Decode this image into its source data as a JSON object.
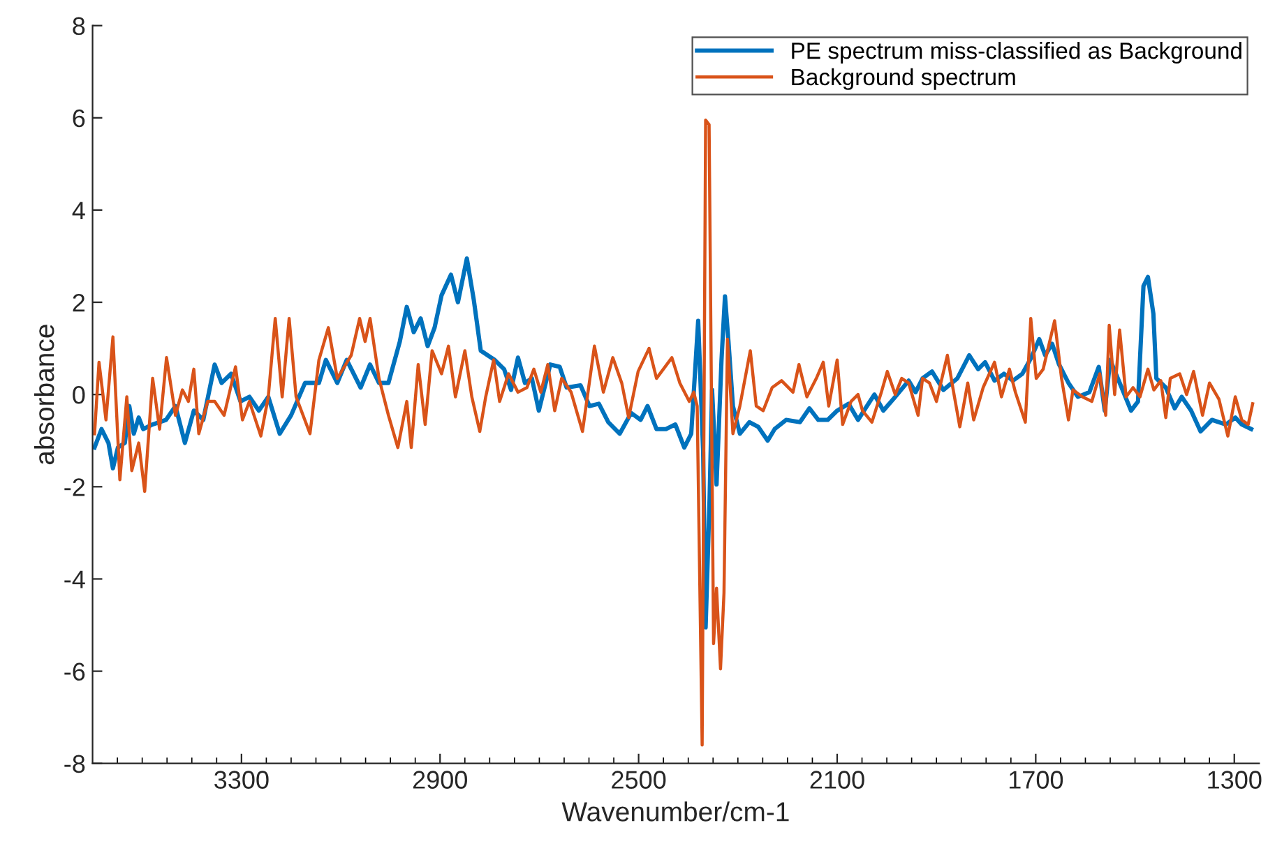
{
  "chart_data": {
    "type": "line",
    "xlabel": "Wavenumber/cm-1",
    "ylabel": "absorbance",
    "xlim": [
      3600,
      1250
    ],
    "ylim": [
      -8,
      8
    ],
    "xticks": [
      {
        "value": 3550,
        "label": null
      },
      {
        "value": 3500,
        "label": null
      },
      {
        "value": 3450,
        "label": null
      },
      {
        "value": 3400,
        "label": null
      },
      {
        "value": 3350,
        "label": null
      },
      3300,
      {
        "value": 3250,
        "label": null
      },
      {
        "value": 3200,
        "label": null
      },
      {
        "value": 3150,
        "label": null
      },
      {
        "value": 3100,
        "label": null
      },
      {
        "value": 3050,
        "label": null
      },
      {
        "value": 3000,
        "label": null
      },
      {
        "value": 2950,
        "label": null
      },
      2900,
      {
        "value": 2850,
        "label": null
      },
      {
        "value": 2800,
        "label": null
      },
      {
        "value": 2750,
        "label": null
      },
      {
        "value": 2700,
        "label": null
      },
      {
        "value": 2650,
        "label": null
      },
      {
        "value": 2600,
        "label": null
      },
      {
        "value": 2550,
        "label": null
      },
      2500,
      {
        "value": 2450,
        "label": null
      },
      {
        "value": 2400,
        "label": null
      },
      {
        "value": 2350,
        "label": null
      },
      {
        "value": 2300,
        "label": null
      },
      {
        "value": 2250,
        "label": null
      },
      {
        "value": 2200,
        "label": null
      },
      {
        "value": 2150,
        "label": null
      },
      2100,
      {
        "value": 2050,
        "label": null
      },
      {
        "value": 2000,
        "label": null
      },
      {
        "value": 1950,
        "label": null
      },
      {
        "value": 1900,
        "label": null
      },
      {
        "value": 1850,
        "label": null
      },
      {
        "value": 1800,
        "label": null
      },
      {
        "value": 1750,
        "label": null
      },
      1700,
      {
        "value": 1650,
        "label": null
      },
      {
        "value": 1600,
        "label": null
      },
      {
        "value": 1550,
        "label": null
      },
      {
        "value": 1500,
        "label": null
      },
      {
        "value": 1450,
        "label": null
      },
      {
        "value": 1400,
        "label": null
      },
      {
        "value": 1350,
        "label": null
      },
      1300
    ],
    "yticks": [
      -8,
      -6,
      -4,
      -2,
      0,
      2,
      4,
      6,
      8
    ],
    "grid": false,
    "legend": "top right",
    "marker": "none",
    "line_style": "solid",
    "series": [
      {
        "name": "PE spectrum miss-classified as Background",
        "color": "#0072bd",
        "x": [
          3596,
          3582,
          3568,
          3559,
          3549,
          3535,
          3526,
          3517,
          3507,
          3498,
          3479,
          3452,
          3433,
          3414,
          3396,
          3377,
          3354,
          3340,
          3321,
          3302,
          3284,
          3265,
          3246,
          3223,
          3200,
          3172,
          3144,
          3130,
          3107,
          3088,
          3060,
          3041,
          3023,
          3004,
          2981,
          2967,
          2953,
          2939,
          2925,
          2911,
          2897,
          2878,
          2864,
          2846,
          2832,
          2818,
          2790,
          2771,
          2757,
          2743,
          2729,
          2715,
          2701,
          2678,
          2659,
          2645,
          2617,
          2599,
          2580,
          2561,
          2538,
          2515,
          2496,
          2482,
          2464,
          2445,
          2426,
          2408,
          2394,
          2380,
          2370,
          2365,
          2357,
          2352,
          2343,
          2333,
          2326,
          2319,
          2310,
          2296,
          2277,
          2259,
          2240,
          2226,
          2203,
          2175,
          2156,
          2138,
          2119,
          2100,
          2077,
          2058,
          2025,
          2007,
          1983,
          1956,
          1942,
          1928,
          1909,
          1886,
          1858,
          1834,
          1816,
          1802,
          1783,
          1764,
          1746,
          1727,
          1709,
          1693,
          1681,
          1667,
          1653,
          1634,
          1615,
          1592,
          1573,
          1561,
          1550,
          1527,
          1508,
          1494,
          1483,
          1474,
          1463,
          1457,
          1438,
          1420,
          1406,
          1387,
          1368,
          1345,
          1317,
          1298,
          1285,
          1266
        ],
        "values": [
          -1.15,
          -0.75,
          -1.05,
          -1.6,
          -1.15,
          -1.05,
          -0.25,
          -0.85,
          -0.5,
          -0.75,
          -0.65,
          -0.55,
          -0.25,
          -1.05,
          -0.35,
          -0.55,
          0.65,
          0.25,
          0.45,
          -0.15,
          -0.05,
          -0.35,
          -0.05,
          -0.85,
          -0.45,
          0.25,
          0.25,
          0.75,
          0.25,
          0.75,
          0.15,
          0.65,
          0.25,
          0.25,
          1.15,
          1.9,
          1.35,
          1.65,
          1.05,
          1.45,
          2.15,
          2.6,
          2.0,
          2.95,
          2.05,
          0.95,
          0.75,
          0.55,
          0.1,
          0.8,
          0.25,
          0.35,
          -0.35,
          0.65,
          0.6,
          0.15,
          0.2,
          -0.25,
          -0.2,
          -0.6,
          -0.85,
          -0.4,
          -0.55,
          -0.25,
          -0.75,
          -0.75,
          -0.65,
          -1.15,
          -0.85,
          1.6,
          -1.25,
          -5.05,
          -2.25,
          0.1,
          -1.95,
          0.75,
          2.13,
          1.15,
          -0.25,
          -0.85,
          -0.6,
          -0.7,
          -1.0,
          -0.75,
          -0.55,
          -0.6,
          -0.3,
          -0.55,
          -0.55,
          -0.35,
          -0.2,
          -0.55,
          0,
          -0.35,
          -0.05,
          0.3,
          0.05,
          0.35,
          0.5,
          0.1,
          0.35,
          0.85,
          0.55,
          0.7,
          0.3,
          0.45,
          0.3,
          0.45,
          0.8,
          1.2,
          0.85,
          1.1,
          0.65,
          0.25,
          -0.05,
          0.05,
          0.6,
          -0.35,
          0.75,
          0.15,
          -0.35,
          -0.15,
          2.35,
          2.55,
          1.75,
          0.35,
          0.15,
          -0.3,
          -0.05,
          -0.35,
          -0.8,
          -0.55,
          -0.65,
          -0.5,
          -0.65,
          -0.75
        ]
      },
      {
        "name": "Background spectrum",
        "color": "#d95319",
        "x": [
          3596,
          3587,
          3573,
          3559,
          3545,
          3531,
          3521,
          3507,
          3495,
          3479,
          3465,
          3451,
          3433,
          3419,
          3407,
          3396,
          3386,
          3368,
          3354,
          3335,
          3312,
          3298,
          3284,
          3261,
          3246,
          3232,
          3218,
          3204,
          3190,
          3162,
          3144,
          3125,
          3107,
          3079,
          3062,
          3051,
          3041,
          3023,
          3004,
          2985,
          2967,
          2958,
          2944,
          2930,
          2916,
          2897,
          2883,
          2869,
          2850,
          2836,
          2820,
          2808,
          2792,
          2780,
          2762,
          2743,
          2725,
          2711,
          2697,
          2683,
          2669,
          2655,
          2636,
          2613,
          2589,
          2571,
          2552,
          2534,
          2520,
          2501,
          2479,
          2464,
          2433,
          2417,
          2398,
          2389,
          2382,
          2372,
          2365,
          2358,
          2349,
          2343,
          2335,
          2328,
          2321,
          2310,
          2296,
          2275,
          2263,
          2249,
          2231,
          2212,
          2189,
          2177,
          2161,
          2142,
          2128,
          2117,
          2100,
          2089,
          2072,
          2058,
          2049,
          2030,
          2011,
          1999,
          1983,
          1970,
          1956,
          1937,
          1928,
          1914,
          1900,
          1878,
          1867,
          1853,
          1837,
          1825,
          1806,
          1783,
          1769,
          1753,
          1741,
          1721,
          1710,
          1699,
          1685,
          1662,
          1648,
          1634,
          1625,
          1606,
          1587,
          1571,
          1559,
          1552,
          1541,
          1531,
          1518,
          1504,
          1490,
          1474,
          1462,
          1448,
          1438,
          1429,
          1410,
          1396,
          1382,
          1364,
          1350,
          1331,
          1313,
          1298,
          1285,
          1272,
          1263
        ],
        "values": [
          -0.85,
          0.7,
          -0.55,
          1.25,
          -1.85,
          -0.05,
          -1.65,
          -1.05,
          -2.1,
          0.35,
          -0.75,
          0.8,
          -0.45,
          0.1,
          -0.15,
          0.55,
          -0.85,
          -0.15,
          -0.15,
          -0.45,
          0.6,
          -0.55,
          -0.15,
          -0.9,
          -0.05,
          1.65,
          -0.05,
          1.65,
          -0.05,
          -0.85,
          0.75,
          1.45,
          0.35,
          0.85,
          1.65,
          1.15,
          1.65,
          0.35,
          -0.45,
          -1.15,
          -0.15,
          -1.15,
          0.65,
          -0.65,
          0.95,
          0.45,
          1.05,
          -0.05,
          0.95,
          -0.05,
          -0.8,
          -0.05,
          0.75,
          -0.15,
          0.45,
          0.05,
          0.15,
          0.55,
          0.05,
          0.65,
          -0.35,
          0.35,
          0.05,
          -0.8,
          1.05,
          0.05,
          0.8,
          0.25,
          -0.5,
          0.5,
          1.0,
          0.35,
          0.8,
          0.25,
          -0.15,
          0.05,
          -0.25,
          -7.6,
          5.95,
          5.85,
          -5.4,
          -4.2,
          -5.95,
          -4.3,
          1.2,
          -0.85,
          -0.25,
          0.95,
          -0.25,
          -0.35,
          0.15,
          0.3,
          0.05,
          0.65,
          -0.05,
          0.35,
          0.7,
          -0.25,
          0.75,
          -0.65,
          -0.15,
          0,
          -0.35,
          -0.6,
          0.05,
          0.5,
          0,
          0.35,
          0.25,
          -0.45,
          0.35,
          0.25,
          -0.15,
          0.85,
          0.15,
          -0.7,
          0.25,
          -0.55,
          0.15,
          0.7,
          -0.05,
          0.55,
          0.05,
          -0.6,
          1.65,
          0.35,
          0.55,
          1.6,
          0.35,
          -0.55,
          0.1,
          -0.05,
          -0.15,
          0.45,
          -0.45,
          1.5,
          0,
          1.4,
          -0.05,
          0.15,
          -0.05,
          0.55,
          0.1,
          0.3,
          -0.5,
          0.35,
          0.45,
          0,
          0.5,
          -0.45,
          0.25,
          -0.1,
          -0.9,
          -0.05,
          -0.55,
          -0.65,
          -0.2
        ]
      }
    ]
  }
}
